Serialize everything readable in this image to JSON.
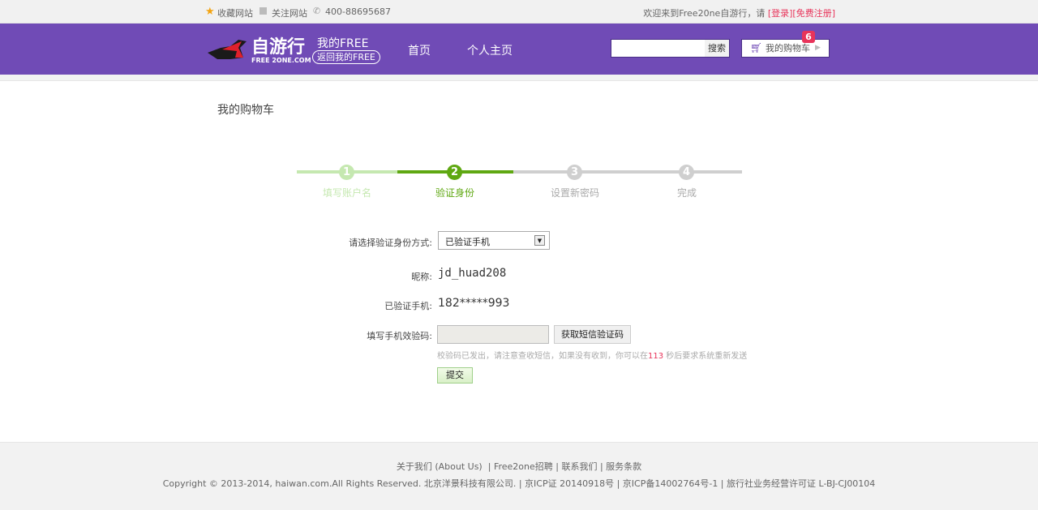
{
  "topbar": {
    "favorite": "收藏网站",
    "follow": "关注网站",
    "phone": "400-88695687",
    "welcome": "欢迎来到Free20ne自游行，请 ",
    "login": "[登录]",
    "register": "[免费注册]"
  },
  "header": {
    "logo_text": "自游行",
    "logo_sub": "FREE 2ONE.COM",
    "my_free": "我的FREE",
    "back_free": "返回我的FREE",
    "nav": [
      "首页",
      "个人主页"
    ],
    "search_placeholder": "",
    "search_button": "搜索",
    "cart_label": "我的购物车",
    "cart_count": "6"
  },
  "page": {
    "title": "我的购物车"
  },
  "steps": [
    {
      "num": "1",
      "label": "填写账户名",
      "state": "done"
    },
    {
      "num": "2",
      "label": "验证身份",
      "state": "active"
    },
    {
      "num": "3",
      "label": "设置新密码",
      "state": "todo"
    },
    {
      "num": "4",
      "label": "完成",
      "state": "todo"
    }
  ],
  "form": {
    "method_label": "请选择验证身份方式:",
    "method_value": "已验证手机",
    "nick_label": "昵称:",
    "nick_value": "jd_huad208",
    "phone_label": "已验证手机:",
    "phone_value": "182*****993",
    "code_label": "填写手机效验码:",
    "code_value": "",
    "get_code_button": "获取短信验证码",
    "hint_before": "校验码已发出，请注意查收短信，如果没有收到，你可以在",
    "hint_seconds": "113",
    "hint_after": " 秒后要求系统重新发送",
    "submit": "提交"
  },
  "footer": {
    "links": [
      "关于我们 (About Us)",
      "Free2one招聘",
      "联系我们",
      "服务条款"
    ],
    "copyright": "Copyright © 2013-2014, haiwan.com.All Rights Reserved. 北京洋景科技有限公司. | 京ICP证 20140918号 | 京ICP备14002764号-1 | 旅行社业务经营许可证 L-BJ-CJ00104"
  },
  "colors": {
    "brand": "#704bb6",
    "active_step": "#5fa812",
    "done_step": "#c5e8b0",
    "todo_step": "#cccccc",
    "alert": "#e8345a"
  }
}
